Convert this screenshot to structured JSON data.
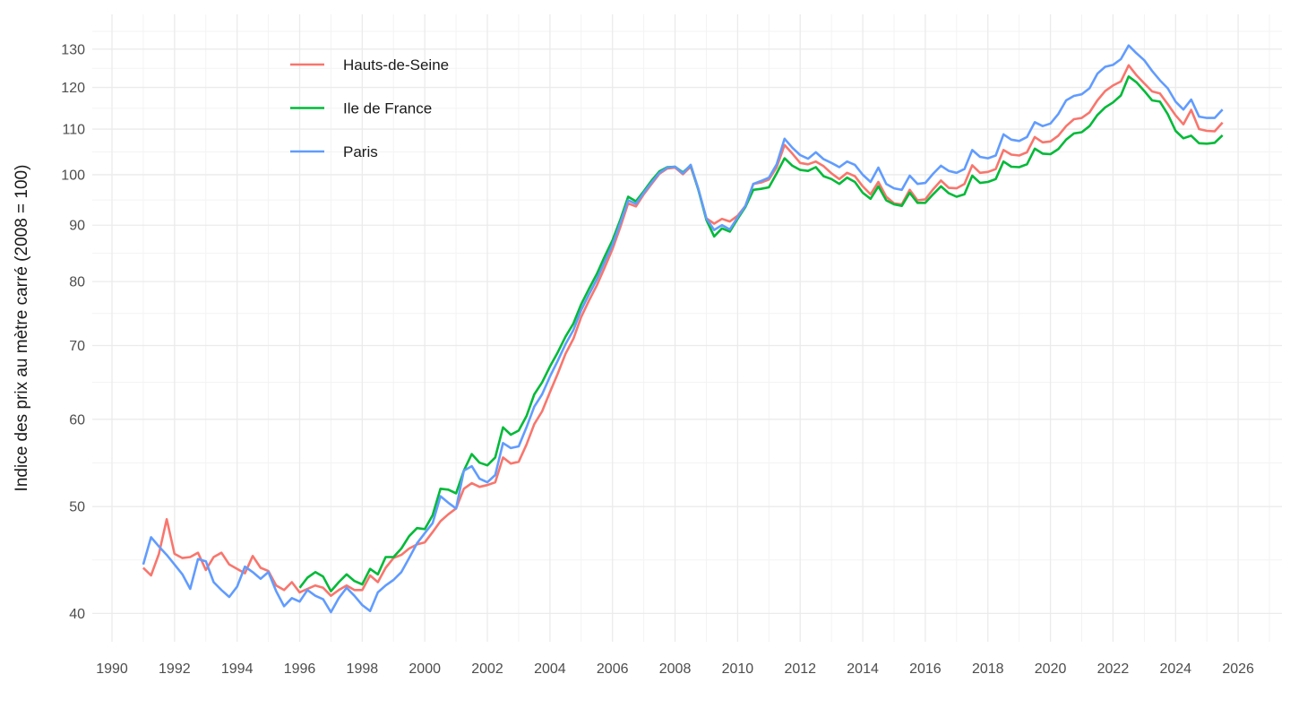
{
  "chart_data": {
    "type": "line",
    "title": "",
    "xlabel": "",
    "ylabel": "Indice des prix au mètre carré (2008 = 100)",
    "grid": "on",
    "legend_position": "top-left-inside",
    "y_scale": "log10",
    "x_range": [
      1989.37,
      2027.4
    ],
    "y_range": [
      37.7,
      139.8
    ],
    "x_ticks": [
      1990,
      1992,
      1994,
      1996,
      1998,
      2000,
      2002,
      2004,
      2006,
      2008,
      2010,
      2012,
      2014,
      2016,
      2018,
      2020,
      2022,
      2024,
      2026
    ],
    "y_ticks": [
      40,
      50,
      60,
      70,
      80,
      90,
      100,
      110,
      120,
      130
    ],
    "frequency": "quarterly",
    "colors": {
      "major_grid": "#ebebeb",
      "minor_grid": "#f3f3f3",
      "tick_text": "#4d4d4d",
      "axis_title_text": "#1a1a1a"
    },
    "series": [
      {
        "name": "Hauts-de-Seine",
        "color": "#F8766D",
        "start": 1991.0,
        "step": 0.25,
        "values": [
          44.0,
          43.3,
          45.3,
          48.7,
          45.3,
          44.9,
          45.0,
          45.4,
          43.8,
          45.0,
          45.4,
          44.3,
          43.9,
          43.5,
          45.1,
          44.0,
          43.7,
          42.4,
          42.0,
          42.7,
          41.8,
          42.1,
          42.4,
          42.2,
          41.5,
          42.0,
          42.4,
          42.0,
          42.0,
          43.3,
          42.7,
          44.0,
          44.9,
          45.2,
          45.8,
          46.2,
          46.4,
          47.4,
          48.5,
          49.2,
          49.8,
          51.9,
          52.5,
          52.1,
          52.3,
          52.6,
          55.4,
          54.7,
          54.9,
          56.9,
          59.4,
          61.0,
          63.5,
          66.0,
          68.8,
          71.0,
          74.3,
          76.9,
          79.4,
          82.4,
          85.6,
          89.6,
          94.2,
          93.6,
          96.0,
          98.1,
          100.2,
          101.3,
          101.5,
          100.1,
          101.7,
          96.9,
          91.3,
          90.3,
          91.2,
          90.7,
          91.8,
          93.7,
          98.1,
          98.4,
          99.0,
          101.6,
          106.4,
          104.5,
          102.5,
          102.2,
          102.8,
          101.8,
          100.3,
          99.1,
          100.4,
          99.7,
          97.6,
          96.0,
          98.5,
          95.5,
          94.2,
          94.0,
          96.9,
          94.8,
          95.0,
          97.0,
          98.8,
          97.3,
          97.2,
          98.1,
          102.0,
          100.4,
          100.6,
          101.2,
          105.3,
          104.3,
          104.1,
          104.8,
          108.2,
          107.0,
          107.2,
          108.5,
          110.7,
          112.3,
          112.6,
          113.9,
          116.8,
          119.1,
          120.5,
          121.5,
          125.7,
          123.1,
          121.0,
          119.0,
          118.5,
          115.9,
          113.2,
          111.1,
          114.5,
          110.0,
          109.6,
          109.5,
          111.5
        ]
      },
      {
        "name": "Ile de France",
        "color": "#00BA38",
        "start": 1996.0,
        "step": 0.25,
        "values": [
          42.2,
          43.1,
          43.6,
          43.2,
          41.9,
          42.7,
          43.4,
          42.8,
          42.5,
          43.9,
          43.4,
          45.0,
          45.0,
          45.8,
          47.0,
          47.8,
          47.7,
          49.1,
          51.9,
          51.8,
          51.4,
          53.9,
          55.8,
          54.8,
          54.5,
          55.4,
          59.0,
          58.1,
          58.6,
          60.4,
          63.2,
          64.8,
          67.0,
          69.0,
          71.3,
          73.3,
          76.3,
          78.8,
          81.3,
          84.3,
          87.2,
          91.0,
          95.5,
          94.6,
          96.6,
          98.8,
          100.7,
          101.6,
          101.7,
          100.5,
          102.0,
          96.8,
          91.0,
          87.9,
          89.4,
          88.8,
          91.2,
          93.5,
          96.9,
          97.1,
          97.4,
          100.3,
          103.5,
          101.9,
          101.0,
          100.8,
          101.6,
          99.7,
          99.1,
          98.1,
          99.4,
          98.5,
          96.3,
          95.1,
          97.6,
          94.8,
          94.0,
          93.7,
          96.3,
          94.3,
          94.3,
          96.0,
          97.6,
          96.2,
          95.5,
          96.0,
          99.8,
          98.3,
          98.5,
          99.1,
          102.8,
          101.7,
          101.6,
          102.2,
          105.6,
          104.5,
          104.4,
          105.5,
          107.6,
          109.0,
          109.3,
          110.7,
          113.3,
          115.1,
          116.3,
          118.0,
          122.8,
          121.3,
          119.1,
          116.8,
          116.5,
          113.5,
          109.6,
          107.9,
          108.5,
          106.8,
          106.7,
          106.9,
          108.6
        ]
      },
      {
        "name": "Paris",
        "color": "#619CFF",
        "start": 1991.0,
        "step": 0.25,
        "values": [
          44.3,
          46.9,
          46.0,
          45.2,
          44.3,
          43.4,
          42.1,
          44.8,
          44.6,
          42.7,
          42.0,
          41.4,
          42.3,
          44.1,
          43.6,
          43.0,
          43.6,
          41.9,
          40.6,
          41.3,
          41.0,
          42.0,
          41.5,
          41.2,
          40.1,
          41.3,
          42.2,
          41.5,
          40.7,
          40.2,
          41.8,
          42.4,
          42.9,
          43.6,
          44.9,
          46.3,
          47.3,
          48.3,
          51.1,
          50.4,
          49.8,
          53.9,
          54.4,
          53.0,
          52.6,
          53.4,
          57.1,
          56.5,
          56.7,
          59.0,
          61.6,
          63.2,
          65.6,
          67.8,
          70.2,
          72.3,
          75.4,
          77.9,
          80.4,
          83.4,
          86.4,
          90.4,
          94.8,
          94.1,
          96.3,
          98.4,
          100.4,
          101.5,
          101.7,
          100.3,
          102.1,
          97.0,
          91.3,
          89.1,
          90.0,
          89.2,
          91.5,
          93.7,
          98.1,
          98.7,
          99.4,
          102.2,
          107.8,
          105.8,
          104.2,
          103.4,
          104.8,
          103.3,
          102.5,
          101.6,
          102.8,
          102.1,
          100.0,
          98.5,
          101.5,
          98.1,
          97.2,
          96.9,
          99.8,
          98.1,
          98.3,
          100.2,
          101.9,
          100.8,
          100.4,
          101.2,
          105.3,
          103.8,
          103.5,
          104.1,
          108.8,
          107.6,
          107.3,
          108.2,
          111.6,
          110.7,
          111.3,
          113.5,
          116.8,
          117.9,
          118.3,
          119.8,
          123.5,
          125.3,
          125.8,
          127.3,
          131.0,
          128.9,
          127.0,
          124.2,
          121.8,
          119.8,
          116.5,
          114.6,
          117.0,
          112.9,
          112.6,
          112.6,
          114.6
        ]
      }
    ]
  }
}
